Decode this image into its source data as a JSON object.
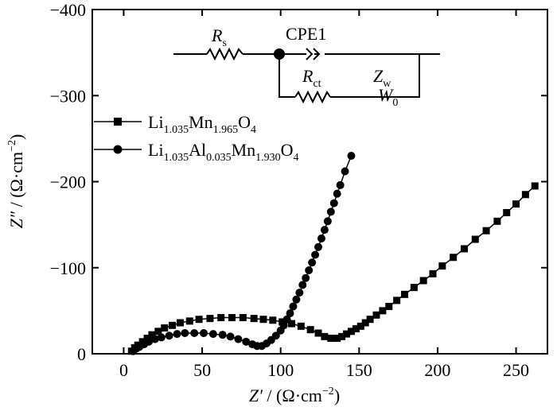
{
  "chart_data": {
    "type": "scatter",
    "x_axis": {
      "label_italic": "Z′",
      "label_unit": " / (Ω·cm",
      "label_exp": "−2",
      "label_close": ")",
      "range": [
        -20,
        270
      ],
      "ticks": [
        0,
        50,
        100,
        150,
        200,
        250
      ],
      "tick_labels": [
        "0",
        "50",
        "100",
        "150",
        "200",
        "250"
      ]
    },
    "y_axis": {
      "label_italic": "Z″",
      "label_unit": " / (Ω·cm",
      "label_exp": "−2",
      "label_close": ")",
      "range": [
        0,
        -400
      ],
      "ticks": [
        0,
        -100,
        -200,
        -300,
        -400
      ],
      "tick_labels": [
        "0",
        "−100",
        "−200",
        "−300",
        "−400"
      ]
    },
    "series": [
      {
        "name": "Li1.035Mn1.965O4",
        "legend_parts": [
          {
            "t": "Li",
            "sub": false
          },
          {
            "t": "1.035",
            "sub": true
          },
          {
            "t": "Mn",
            "sub": false
          },
          {
            "t": "1.965",
            "sub": true
          },
          {
            "t": "O",
            "sub": false
          },
          {
            "t": "4",
            "sub": true
          }
        ],
        "marker": "square",
        "points": [
          [
            5,
            -3
          ],
          [
            7,
            -7
          ],
          [
            9,
            -10
          ],
          [
            12,
            -14
          ],
          [
            15,
            -18
          ],
          [
            18,
            -22
          ],
          [
            22,
            -26
          ],
          [
            26,
            -30
          ],
          [
            31,
            -33
          ],
          [
            36,
            -36
          ],
          [
            42,
            -38
          ],
          [
            48,
            -40
          ],
          [
            55,
            -41
          ],
          [
            62,
            -42
          ],
          [
            69,
            -42
          ],
          [
            76,
            -42
          ],
          [
            83,
            -41
          ],
          [
            89,
            -40
          ],
          [
            95,
            -39
          ],
          [
            101,
            -37
          ],
          [
            107,
            -35
          ],
          [
            113,
            -32
          ],
          [
            119,
            -28
          ],
          [
            124,
            -24
          ],
          [
            128,
            -20
          ],
          [
            132,
            -18
          ],
          [
            136,
            -18
          ],
          [
            139,
            -20
          ],
          [
            142,
            -23
          ],
          [
            145,
            -26
          ],
          [
            148,
            -29
          ],
          [
            151,
            -32
          ],
          [
            154,
            -36
          ],
          [
            157,
            -40
          ],
          [
            161,
            -45
          ],
          [
            165,
            -50
          ],
          [
            169,
            -55
          ],
          [
            174,
            -62
          ],
          [
            179,
            -69
          ],
          [
            185,
            -77
          ],
          [
            191,
            -85
          ],
          [
            197,
            -93
          ],
          [
            203,
            -102
          ],
          [
            210,
            -112
          ],
          [
            217,
            -122
          ],
          [
            224,
            -133
          ],
          [
            231,
            -143
          ],
          [
            238,
            -154
          ],
          [
            244,
            -164
          ],
          [
            250,
            -174
          ],
          [
            256,
            -185
          ],
          [
            262,
            -195
          ]
        ]
      },
      {
        "name": "Li1.035Al0.035Mn1.930O4",
        "legend_parts": [
          {
            "t": "Li",
            "sub": false
          },
          {
            "t": "1.035",
            "sub": true
          },
          {
            "t": "Al",
            "sub": false
          },
          {
            "t": "0.035",
            "sub": true
          },
          {
            "t": "Mn",
            "sub": false
          },
          {
            "t": "1.930",
            "sub": true
          },
          {
            "t": "O",
            "sub": false
          },
          {
            "t": "4",
            "sub": true
          }
        ],
        "marker": "circle",
        "points": [
          [
            6,
            -3
          ],
          [
            8,
            -6
          ],
          [
            10,
            -8
          ],
          [
            13,
            -11
          ],
          [
            16,
            -14
          ],
          [
            20,
            -17
          ],
          [
            24,
            -19
          ],
          [
            29,
            -21
          ],
          [
            34,
            -23
          ],
          [
            39,
            -24
          ],
          [
            45,
            -24
          ],
          [
            51,
            -24
          ],
          [
            57,
            -23
          ],
          [
            63,
            -22
          ],
          [
            68,
            -20
          ],
          [
            73,
            -17
          ],
          [
            78,
            -14
          ],
          [
            82,
            -11
          ],
          [
            85,
            -9
          ],
          [
            88,
            -9
          ],
          [
            91,
            -12
          ],
          [
            94,
            -16
          ],
          [
            97,
            -21
          ],
          [
            100,
            -27
          ],
          [
            102,
            -33
          ],
          [
            104,
            -40
          ],
          [
            106,
            -47
          ],
          [
            108,
            -55
          ],
          [
            110,
            -63
          ],
          [
            112,
            -71
          ],
          [
            114,
            -80
          ],
          [
            116,
            -88
          ],
          [
            118,
            -97
          ],
          [
            120,
            -106
          ],
          [
            122,
            -115
          ],
          [
            124,
            -124
          ],
          [
            126,
            -134
          ],
          [
            128,
            -144
          ],
          [
            130,
            -154
          ],
          [
            132,
            -165
          ],
          [
            134,
            -175
          ],
          [
            136,
            -186
          ],
          [
            138,
            -196
          ],
          [
            141,
            -212
          ],
          [
            145,
            -230
          ]
        ]
      }
    ],
    "inset_circuit": {
      "labels": {
        "rs_main": "R",
        "rs_sub": "s",
        "cpe": "CPE1",
        "rct_main": "R",
        "rct_sub": "ct",
        "zw_main": "Z",
        "zw_sub": "w",
        "w0_main": "W",
        "w0_sub": "0"
      }
    }
  }
}
